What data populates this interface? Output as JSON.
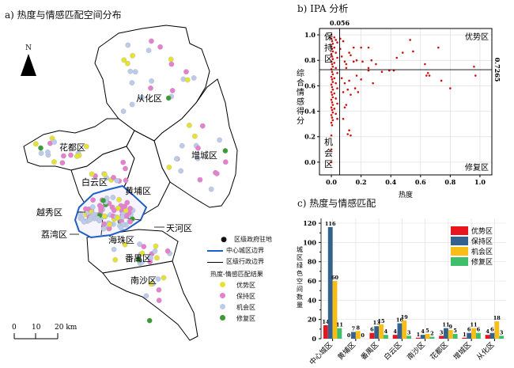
{
  "panel_a": {
    "title": "a) 热度与情感匹配空间分布",
    "north_label": "N",
    "scale_labels": [
      "0",
      "10",
      "20 km"
    ],
    "district_labels": [
      "从化区",
      "花都区",
      "增城区",
      "白云区",
      "黄埔区",
      "越秀区",
      "荔湾区",
      "天河区",
      "海珠区",
      "番禺区",
      "南沙区"
    ],
    "legend": {
      "items": [
        {
          "label": "区级政府驻地",
          "symbol": "dot-black"
        },
        {
          "label": "中心城区边界",
          "symbol": "line-blue"
        },
        {
          "label": "区级行政边界",
          "symbol": "line-black"
        }
      ],
      "category_title": "热度-情感匹配结果",
      "categories": [
        {
          "label": "优势区",
          "color": "#e5e234"
        },
        {
          "label": "保持区",
          "color": "#e57fce"
        },
        {
          "label": "机会区",
          "color": "#bccbea"
        },
        {
          "label": "修复区",
          "color": "#3a9a33"
        }
      ]
    }
  },
  "chart_data": [
    {
      "type": "scatter",
      "title": "b) IPA 分析",
      "xlabel": "热度",
      "ylabel": "综合情感得分",
      "xlim": [
        -0.08,
        1.08
      ],
      "ylim": [
        -0.1,
        1.05
      ],
      "xticks": [
        "0.0",
        "0.2",
        "0.4",
        "0.6",
        "0.8",
        "1.0"
      ],
      "yticks": [
        "0.0",
        "0.2",
        "0.4",
        "0.6",
        "0.8",
        "1.0"
      ],
      "grid": true,
      "thresholds": {
        "x": 0.056,
        "y": 0.7265,
        "x_label": "0.056",
        "y_label": "0.7265"
      },
      "quadrant_labels": {
        "top_left": "保持区",
        "top_right": "优势区",
        "bottom_left": "机会区",
        "bottom_right": "修复区"
      },
      "point_color": "#cc1111",
      "points": [
        [
          0.0,
          1.0
        ],
        [
          0.0,
          0.97
        ],
        [
          0.005,
          0.95
        ],
        [
          0.01,
          0.93
        ],
        [
          0.0,
          0.91
        ],
        [
          0.005,
          0.89
        ],
        [
          0.01,
          0.87
        ],
        [
          0.0,
          0.85
        ],
        [
          0.005,
          0.83
        ],
        [
          0.01,
          0.81
        ],
        [
          0.0,
          0.79
        ],
        [
          0.005,
          0.77
        ],
        [
          0.01,
          0.75
        ],
        [
          0.0,
          0.73
        ],
        [
          0.005,
          0.71
        ],
        [
          0.01,
          0.69
        ],
        [
          0.0,
          0.67
        ],
        [
          0.005,
          0.65
        ],
        [
          0.01,
          0.63
        ],
        [
          0.0,
          0.61
        ],
        [
          0.005,
          0.59
        ],
        [
          0.01,
          0.57
        ],
        [
          0.0,
          0.55
        ],
        [
          0.005,
          0.53
        ],
        [
          0.01,
          0.51
        ],
        [
          0.0,
          0.49
        ],
        [
          0.005,
          0.47
        ],
        [
          0.01,
          0.45
        ],
        [
          0.0,
          0.43
        ],
        [
          0.005,
          0.41
        ],
        [
          0.01,
          0.39
        ],
        [
          0.0,
          0.37
        ],
        [
          0.005,
          0.35
        ],
        [
          0.01,
          0.33
        ],
        [
          0.0,
          0.31
        ],
        [
          0.005,
          0.29
        ],
        [
          0.0,
          0.21
        ],
        [
          0.0,
          0.1
        ],
        [
          0.0,
          0.0
        ],
        [
          0.02,
          0.98
        ],
        [
          0.03,
          0.96
        ],
        [
          0.04,
          0.94
        ],
        [
          0.02,
          0.9
        ],
        [
          0.03,
          0.86
        ],
        [
          0.04,
          0.82
        ],
        [
          0.02,
          0.78
        ],
        [
          0.03,
          0.74
        ],
        [
          0.04,
          0.7
        ],
        [
          0.02,
          0.66
        ],
        [
          0.03,
          0.62
        ],
        [
          0.04,
          0.58
        ],
        [
          0.02,
          0.54
        ],
        [
          0.03,
          0.5
        ],
        [
          0.04,
          0.46
        ],
        [
          0.02,
          0.42
        ],
        [
          0.03,
          0.38
        ],
        [
          0.04,
          0.34
        ],
        [
          0.06,
          0.97
        ],
        [
          0.08,
          0.95
        ],
        [
          0.06,
          0.89
        ],
        [
          0.07,
          0.83
        ],
        [
          0.09,
          0.79
        ],
        [
          0.1,
          0.77
        ],
        [
          0.12,
          0.86
        ],
        [
          0.13,
          0.84
        ],
        [
          0.15,
          0.9
        ],
        [
          0.17,
          0.8
        ],
        [
          0.2,
          0.9
        ],
        [
          0.21,
          0.79
        ],
        [
          0.25,
          0.9
        ],
        [
          0.27,
          0.8
        ],
        [
          0.15,
          0.79
        ],
        [
          0.1,
          0.74
        ],
        [
          0.07,
          0.66
        ],
        [
          0.09,
          0.62
        ],
        [
          0.11,
          0.57
        ],
        [
          0.13,
          0.53
        ],
        [
          0.08,
          0.55
        ],
        [
          0.12,
          0.64
        ],
        [
          0.16,
          0.58
        ],
        [
          0.18,
          0.55
        ],
        [
          0.17,
          0.68
        ],
        [
          0.2,
          0.65
        ],
        [
          0.25,
          0.72
        ],
        [
          0.28,
          0.62
        ],
        [
          0.3,
          0.77
        ],
        [
          0.25,
          0.74
        ],
        [
          0.34,
          0.71
        ],
        [
          0.39,
          0.72
        ],
        [
          0.42,
          0.72
        ],
        [
          0.44,
          0.82
        ],
        [
          0.48,
          0.86
        ],
        [
          0.53,
          0.96
        ],
        [
          0.55,
          0.87
        ],
        [
          0.63,
          0.77
        ],
        [
          0.65,
          0.7
        ],
        [
          0.64,
          0.68
        ],
        [
          0.66,
          0.68
        ],
        [
          0.72,
          0.9
        ],
        [
          0.74,
          0.64
        ],
        [
          0.8,
          0.58
        ],
        [
          0.96,
          0.75
        ],
        [
          0.97,
          0.68
        ],
        [
          0.1,
          0.45
        ],
        [
          0.09,
          0.43
        ],
        [
          0.08,
          0.34
        ],
        [
          0.12,
          0.25
        ],
        [
          0.11,
          0.22
        ],
        [
          0.13,
          0.21
        ]
      ]
    },
    {
      "type": "bar",
      "title": "c) 热度与情感匹配",
      "xlabel": "",
      "ylabel": "城区绿色空间数量",
      "ylim": [
        0,
        125
      ],
      "yticks": [
        "0",
        "20",
        "40",
        "60",
        "80",
        "100",
        "120"
      ],
      "grid": true,
      "legend_position": "top-right",
      "categories": [
        "中心城区",
        "黄埔区",
        "番禺区",
        "白云区",
        "南沙区",
        "花都区",
        "增城区",
        "从化区"
      ],
      "series": [
        {
          "name": "优势区",
          "color": "#e8141e",
          "values": [
            14,
            0,
            6,
            4,
            1,
            3,
            1,
            4
          ]
        },
        {
          "name": "保持区",
          "color": "#33628f",
          "values": [
            116,
            7,
            13,
            16,
            4,
            11,
            6,
            6
          ]
        },
        {
          "name": "机会区",
          "color": "#f9bd18",
          "values": [
            60,
            8,
            15,
            19,
            5,
            9,
            11,
            18
          ]
        },
        {
          "name": "修复区",
          "color": "#3fbe6c",
          "values": [
            11,
            0,
            4,
            3,
            2,
            5,
            6,
            3
          ]
        }
      ]
    }
  ]
}
